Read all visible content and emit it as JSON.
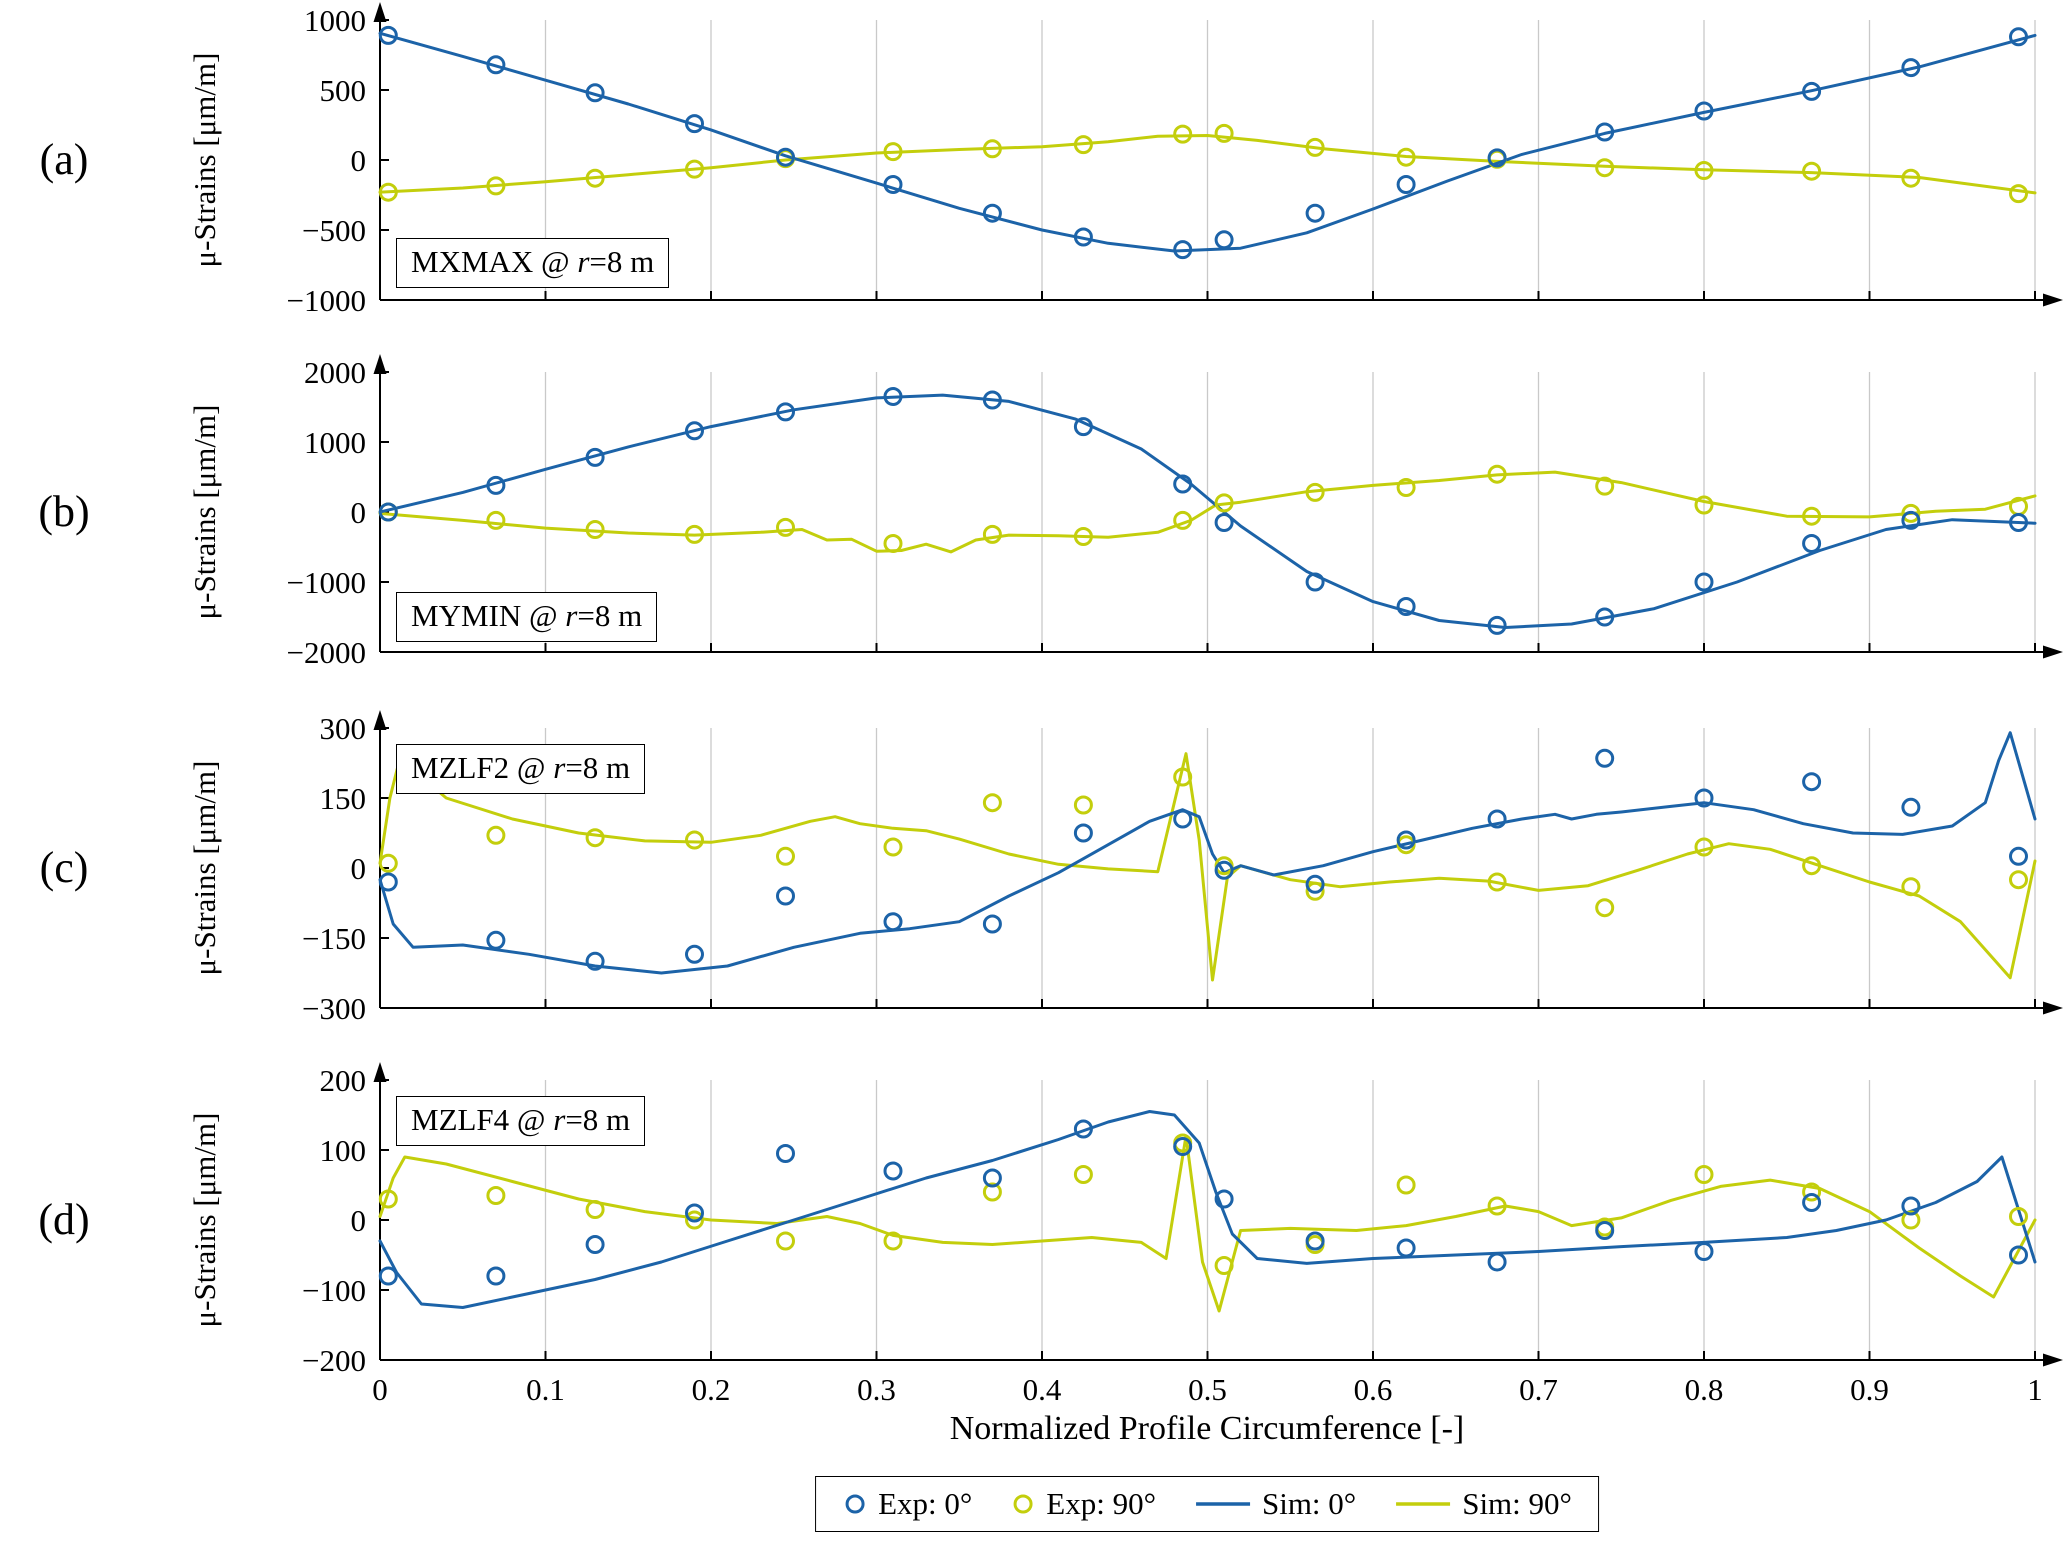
{
  "figure": {
    "xlabel": "Normalized Profile Circumference [-]",
    "colors": {
      "series0": "#1c63a8",
      "series90": "#c3ce0c",
      "grid": "#c9c9c9",
      "axis": "#000000"
    }
  },
  "legend": {
    "items": [
      {
        "label": "Exp: 0°",
        "type": "marker",
        "series": "series0"
      },
      {
        "label": "Exp: 90°",
        "type": "marker",
        "series": "series90"
      },
      {
        "label": "Sim: 0°",
        "type": "line",
        "series": "series0"
      },
      {
        "label": "Sim: 90°",
        "type": "line",
        "series": "series90"
      }
    ]
  },
  "chart_data": {
    "type": "line-scatter",
    "x_range": [
      0,
      1
    ],
    "x_ticks": [
      0,
      0.1,
      0.2,
      0.3,
      0.4,
      0.5,
      0.6,
      0.7,
      0.8,
      0.9,
      1
    ],
    "exp_x": [
      0.005,
      0.07,
      0.13,
      0.19,
      0.245,
      0.31,
      0.37,
      0.425,
      0.485,
      0.51,
      0.565,
      0.62,
      0.675,
      0.74,
      0.8,
      0.865,
      0.925,
      0.99
    ],
    "panels": [
      {
        "id": "a",
        "panel_letter": "(a)",
        "ylabel": "μ-Strains [μm/m]",
        "tag_pre": "MXMAX @ ",
        "tag_var": "r",
        "tag_post": "=8 m",
        "ylim": [
          -1000,
          1000
        ],
        "yticks": [
          -1000,
          -500,
          0,
          500,
          1000
        ],
        "exp0_y": [
          890,
          680,
          480,
          260,
          20,
          -175,
          -380,
          -550,
          -640,
          -570,
          -380,
          -175,
          15,
          200,
          350,
          490,
          660,
          880
        ],
        "exp90_y": [
          -230,
          -185,
          -130,
          -65,
          10,
          60,
          80,
          110,
          185,
          190,
          90,
          20,
          5,
          -55,
          -75,
          -80,
          -130,
          -240
        ],
        "sim0": {
          "x": [
            0,
            0.05,
            0.1,
            0.15,
            0.2,
            0.245,
            0.3,
            0.35,
            0.4,
            0.44,
            0.48,
            0.52,
            0.56,
            0.6,
            0.645,
            0.69,
            0.74,
            0.8,
            0.865,
            0.93,
            1.0
          ],
          "y": [
            905,
            740,
            570,
            400,
            215,
            30,
            -165,
            -345,
            -500,
            -595,
            -650,
            -630,
            -520,
            -350,
            -150,
            40,
            190,
            340,
            495,
            665,
            890
          ]
        },
        "sim90": {
          "x": [
            0,
            0.05,
            0.1,
            0.15,
            0.2,
            0.245,
            0.3,
            0.35,
            0.4,
            0.44,
            0.47,
            0.5,
            0.53,
            0.57,
            0.62,
            0.675,
            0.74,
            0.8,
            0.865,
            0.93,
            1.0
          ],
          "y": [
            -230,
            -200,
            -155,
            -105,
            -55,
            0,
            50,
            75,
            95,
            130,
            170,
            175,
            140,
            80,
            25,
            -10,
            -45,
            -70,
            -90,
            -125,
            -235
          ]
        }
      },
      {
        "id": "b",
        "panel_letter": "(b)",
        "ylabel": "μ-Strains [μm/m]",
        "tag_pre": "MYMIN @ ",
        "tag_var": "r",
        "tag_post": "=8 m",
        "ylim": [
          -2000,
          2000
        ],
        "yticks": [
          -2000,
          -1000,
          0,
          1000,
          2000
        ],
        "exp0_y": [
          0,
          380,
          780,
          1160,
          1430,
          1650,
          1600,
          1220,
          400,
          -150,
          -1000,
          -1350,
          -1620,
          -1500,
          -1000,
          -450,
          -120,
          -150
        ],
        "exp90_y": [
          0,
          -120,
          -250,
          -320,
          -220,
          -450,
          -320,
          -350,
          -120,
          130,
          280,
          350,
          540,
          370,
          100,
          -60,
          -20,
          80
        ],
        "sim0": {
          "x": [
            0,
            0.05,
            0.1,
            0.15,
            0.2,
            0.25,
            0.3,
            0.34,
            0.38,
            0.42,
            0.46,
            0.49,
            0.52,
            0.56,
            0.6,
            0.64,
            0.68,
            0.72,
            0.77,
            0.82,
            0.87,
            0.91,
            0.95,
            1.0
          ],
          "y": [
            0,
            280,
            610,
            930,
            1220,
            1460,
            1630,
            1670,
            1580,
            1330,
            900,
            400,
            -200,
            -850,
            -1280,
            -1550,
            -1650,
            -1600,
            -1380,
            -1000,
            -550,
            -250,
            -110,
            -160
          ]
        },
        "sim90": {
          "x": [
            0,
            0.05,
            0.1,
            0.15,
            0.19,
            0.23,
            0.255,
            0.27,
            0.285,
            0.3,
            0.315,
            0.33,
            0.345,
            0.36,
            0.38,
            0.41,
            0.44,
            0.47,
            0.49,
            0.505,
            0.52,
            0.56,
            0.6,
            0.64,
            0.675,
            0.71,
            0.75,
            0.8,
            0.85,
            0.9,
            0.94,
            0.97,
            1.0
          ],
          "y": [
            -20,
            -120,
            -230,
            -300,
            -330,
            -290,
            -250,
            -400,
            -390,
            -560,
            -550,
            -460,
            -570,
            -400,
            -330,
            -340,
            -360,
            -290,
            -120,
            100,
            140,
            290,
            380,
            450,
            530,
            570,
            420,
            150,
            -60,
            -70,
            10,
            40,
            230
          ]
        }
      },
      {
        "id": "c",
        "panel_letter": "(c)",
        "ylabel": "μ-Strains [μm/m]",
        "tag_pre": "MZLF2 @ ",
        "tag_var": "r",
        "tag_post": "=8 m",
        "ylim": [
          -300,
          300
        ],
        "yticks": [
          -300,
          -150,
          0,
          150,
          300
        ],
        "exp0_y": [
          -30,
          -155,
          -200,
          -185,
          -60,
          -115,
          -120,
          75,
          105,
          -5,
          -35,
          60,
          105,
          235,
          150,
          185,
          130,
          25
        ],
        "exp90_y": [
          10,
          70,
          65,
          60,
          25,
          45,
          140,
          135,
          195,
          5,
          -50,
          50,
          -30,
          -85,
          45,
          5,
          -40,
          -25
        ],
        "sim0": {
          "x": [
            0,
            0.008,
            0.02,
            0.05,
            0.09,
            0.13,
            0.17,
            0.21,
            0.25,
            0.29,
            0.32,
            0.35,
            0.38,
            0.41,
            0.44,
            0.465,
            0.485,
            0.495,
            0.503,
            0.51,
            0.52,
            0.54,
            0.57,
            0.6,
            0.63,
            0.66,
            0.69,
            0.71,
            0.72,
            0.735,
            0.75,
            0.78,
            0.8,
            0.83,
            0.86,
            0.89,
            0.92,
            0.95,
            0.97,
            0.978,
            0.985,
            1.0
          ],
          "y": [
            -25,
            -120,
            -170,
            -165,
            -185,
            -210,
            -225,
            -210,
            -170,
            -140,
            -130,
            -115,
            -60,
            -10,
            50,
            100,
            125,
            110,
            30,
            -10,
            5,
            -15,
            5,
            35,
            60,
            85,
            105,
            115,
            105,
            115,
            120,
            132,
            140,
            125,
            95,
            75,
            72,
            90,
            140,
            230,
            290,
            105
          ]
        },
        "sim90": {
          "x": [
            0,
            0.006,
            0.012,
            0.04,
            0.08,
            0.12,
            0.16,
            0.2,
            0.23,
            0.26,
            0.275,
            0.29,
            0.31,
            0.33,
            0.35,
            0.38,
            0.41,
            0.44,
            0.47,
            0.487,
            0.495,
            0.503,
            0.512,
            0.52,
            0.55,
            0.58,
            0.61,
            0.64,
            0.67,
            0.7,
            0.73,
            0.76,
            0.79,
            0.815,
            0.84,
            0.87,
            0.9,
            0.93,
            0.955,
            0.975,
            0.985,
            1.0
          ],
          "y": [
            10,
            150,
            235,
            150,
            105,
            75,
            58,
            55,
            70,
            100,
            110,
            95,
            85,
            80,
            62,
            30,
            8,
            -2,
            -8,
            245,
            60,
            -240,
            -20,
            5,
            -25,
            -40,
            -30,
            -22,
            -28,
            -48,
            -38,
            -5,
            30,
            52,
            40,
            5,
            -30,
            -60,
            -115,
            -195,
            -235,
            15
          ]
        }
      },
      {
        "id": "d",
        "panel_letter": "(d)",
        "ylabel": "μ-Strains [μm/m]",
        "tag_pre": "MZLF4 @ ",
        "tag_var": "r",
        "tag_post": "=8 m",
        "ylim": [
          -200,
          200
        ],
        "yticks": [
          -200,
          -100,
          0,
          100,
          200
        ],
        "exp0_y": [
          -80,
          -80,
          -35,
          10,
          95,
          70,
          60,
          130,
          105,
          30,
          -30,
          -40,
          -60,
          -15,
          -45,
          25,
          20,
          -50
        ],
        "exp90_y": [
          30,
          35,
          15,
          0,
          -30,
          -30,
          40,
          65,
          110,
          -65,
          -35,
          50,
          20,
          -10,
          65,
          40,
          0,
          5
        ],
        "sim0": {
          "x": [
            0,
            0.01,
            0.025,
            0.05,
            0.09,
            0.13,
            0.17,
            0.21,
            0.25,
            0.29,
            0.33,
            0.37,
            0.41,
            0.44,
            0.465,
            0.48,
            0.495,
            0.505,
            0.515,
            0.53,
            0.56,
            0.6,
            0.65,
            0.7,
            0.75,
            0.8,
            0.85,
            0.88,
            0.91,
            0.94,
            0.965,
            0.98,
            1.0
          ],
          "y": [
            -30,
            -75,
            -120,
            -125,
            -105,
            -85,
            -60,
            -30,
            0,
            30,
            60,
            85,
            115,
            140,
            155,
            150,
            110,
            40,
            -20,
            -55,
            -62,
            -55,
            -50,
            -45,
            -38,
            -32,
            -25,
            -15,
            0,
            25,
            55,
            90,
            -60
          ]
        },
        "sim90": {
          "x": [
            0,
            0.008,
            0.015,
            0.04,
            0.08,
            0.12,
            0.16,
            0.2,
            0.24,
            0.27,
            0.29,
            0.31,
            0.34,
            0.37,
            0.4,
            0.43,
            0.46,
            0.475,
            0.487,
            0.497,
            0.507,
            0.52,
            0.55,
            0.59,
            0.62,
            0.65,
            0.68,
            0.7,
            0.72,
            0.75,
            0.78,
            0.81,
            0.84,
            0.87,
            0.9,
            0.93,
            0.955,
            0.975,
            1.0
          ],
          "y": [
            5,
            60,
            90,
            80,
            55,
            30,
            12,
            0,
            -5,
            5,
            -5,
            -22,
            -32,
            -35,
            -30,
            -25,
            -32,
            -55,
            120,
            -60,
            -130,
            -15,
            -12,
            -15,
            -8,
            5,
            20,
            12,
            -8,
            3,
            28,
            48,
            57,
            45,
            12,
            -40,
            -80,
            -110,
            0
          ]
        }
      }
    ]
  }
}
